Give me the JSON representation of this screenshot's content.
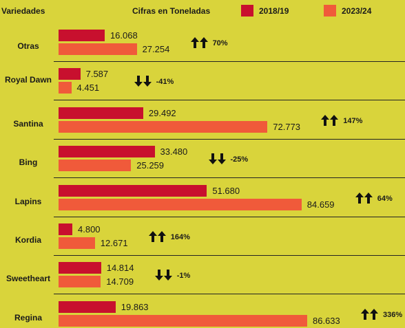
{
  "chart_data": {
    "type": "bar",
    "orientation": "horizontal",
    "category_header": "Variedades",
    "subtitle": "Cifras en Toneladas",
    "categories": [
      "Otras",
      "Royal Dawn",
      "Santina",
      "Bing",
      "Lapins",
      "Kordia",
      "Sweetheart",
      "Regina"
    ],
    "series": [
      {
        "name": "2018/19",
        "color": "#c8102e",
        "values": [
          16068,
          7587,
          29492,
          33480,
          51680,
          4800,
          14814,
          19863
        ],
        "value_labels": [
          "16.068",
          "7.587",
          "29.492",
          "33.480",
          "51.680",
          "4.800",
          "14.814",
          "19.863"
        ]
      },
      {
        "name": "2023/24",
        "color": "#f05a3a",
        "values": [
          27254,
          4451,
          72773,
          25259,
          84659,
          12671,
          14709,
          86633
        ],
        "value_labels": [
          "27.254",
          "4.451",
          "72.773",
          "25.259",
          "84.659",
          "12.671",
          "14.709",
          "86.633"
        ]
      }
    ],
    "changes": [
      {
        "value": 70,
        "label": "70%"
      },
      {
        "value": -41,
        "label": "-41%"
      },
      {
        "value": 147,
        "label": "147%"
      },
      {
        "value": -25,
        "label": "-25%"
      },
      {
        "value": 64,
        "label": "64%"
      },
      {
        "value": 164,
        "label": "164%"
      },
      {
        "value": -1,
        "label": "-1%"
      },
      {
        "value": 336,
        "label": "336%"
      }
    ]
  }
}
